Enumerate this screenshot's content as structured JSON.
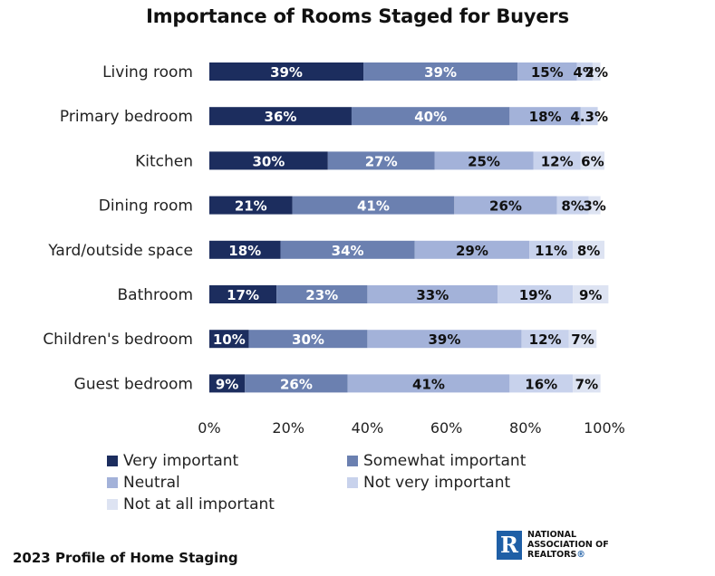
{
  "chart_data": {
    "type": "bar",
    "orientation": "horizontal",
    "stacked": true,
    "title": "Importance of Rooms Staged for Buyers",
    "categories": [
      "Living room",
      "Primary bedroom",
      "Kitchen",
      "Dining room",
      "Yard/outside space",
      "Bathroom",
      "Children's bedroom",
      "Guest bedroom"
    ],
    "series": [
      {
        "name": "Very important",
        "color": "#1c2d5e",
        "values": [
          39,
          36,
          30,
          21,
          18,
          17,
          10,
          9
        ],
        "labels": [
          "39%",
          "36%",
          "30%",
          "21%",
          "18%",
          "17%",
          "10%",
          "9%"
        ]
      },
      {
        "name": "Somewhat important",
        "color": "#6b80b0",
        "values": [
          39,
          40,
          27,
          41,
          34,
          23,
          30,
          26
        ],
        "labels": [
          "39%",
          "40%",
          "27%",
          "41%",
          "34%",
          "23%",
          "30%",
          "26%"
        ]
      },
      {
        "name": "Neutral",
        "color": "#a3b2d9",
        "values": [
          15,
          18,
          25,
          26,
          29,
          33,
          39,
          41
        ],
        "labels": [
          "15%",
          "18%",
          "25%",
          "26%",
          "29%",
          "33%",
          "39%",
          "41%"
        ]
      },
      {
        "name": "Not very important",
        "color": "#c8d2ec",
        "values": [
          4,
          4.3,
          12,
          8,
          11,
          19,
          12,
          16
        ],
        "labels": [
          "4%",
          "4.3%",
          "12%",
          "8%",
          "11%",
          "19%",
          "12%",
          "16%"
        ]
      },
      {
        "name": "Not at all important",
        "color": "#dde3f2",
        "values": [
          2,
          0,
          6,
          3,
          8,
          9,
          7,
          7
        ],
        "labels": [
          "2%",
          "",
          "6%",
          "3%",
          "8%",
          "9%",
          "7%",
          "7%"
        ]
      }
    ],
    "xaxis_ticks": [
      "0%",
      "20%",
      "40%",
      "60%",
      "80%",
      "100%"
    ],
    "xlim": [
      0,
      100
    ],
    "grid": false,
    "legend_position": "bottom"
  },
  "source_note": "2023 Profile of Home Staging",
  "logo": {
    "mark": "R",
    "line1": "NATIONAL",
    "line2": "ASSOCIATION OF",
    "line3": "REALTORS",
    "reg": "®"
  }
}
